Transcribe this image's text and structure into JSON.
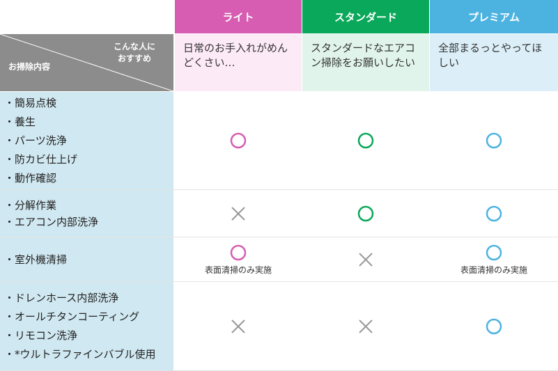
{
  "table": {
    "corner": {
      "top_right": "こんな人に\nおすすめ",
      "bottom_left": "お掃除内容"
    },
    "plans": [
      {
        "name": "ライト",
        "recommend": "日常のお手入れがめんどくさい…",
        "color": "#d65db1",
        "light": "#fdeaf7"
      },
      {
        "name": "スタンダード",
        "recommend": "スタンダードなエアコン掃除をお願いしたい",
        "color": "#0aa85a",
        "light": "#e0f4ec"
      },
      {
        "name": "プレミアム",
        "recommend": "全部まるっとやってほしい",
        "color": "#4cb3e0",
        "light": "#dceff8"
      }
    ],
    "rows": [
      {
        "items": [
          "・簡易点検",
          "・養生",
          "・パーツ洗浄",
          "・防カビ仕上げ",
          "・動作確認"
        ],
        "cells": [
          {
            "included": true
          },
          {
            "included": true
          },
          {
            "included": true
          }
        ]
      },
      {
        "items": [
          "・分解作業",
          "・エアコン内部洗浄"
        ],
        "cells": [
          {
            "included": false
          },
          {
            "included": true
          },
          {
            "included": true
          }
        ]
      },
      {
        "items": [
          "・室外機清掃"
        ],
        "cells": [
          {
            "included": true,
            "note": "表面清掃のみ実施"
          },
          {
            "included": false
          },
          {
            "included": true,
            "note": "表面清掃のみ実施"
          }
        ]
      },
      {
        "items": [
          "・ドレンホース内部洗浄",
          "・オールチタンコーティング",
          "・リモコン洗浄",
          "・*ウルトラファインバブル使用"
        ],
        "cells": [
          {
            "included": false
          },
          {
            "included": false
          },
          {
            "included": true
          }
        ]
      }
    ]
  }
}
